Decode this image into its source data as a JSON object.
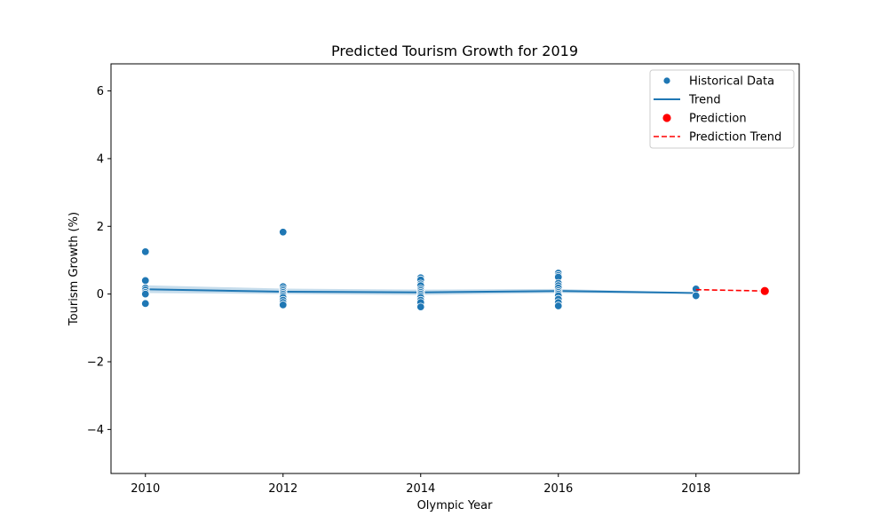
{
  "chart_data": {
    "type": "scatter",
    "title": "Predicted Tourism Growth for 2019",
    "xlabel": "Olympic Year",
    "ylabel": "Tourism Growth (%)",
    "xlim": [
      2009.5,
      2019.5
    ],
    "ylim": [
      -5.3,
      6.8
    ],
    "x_ticks": [
      2010,
      2012,
      2014,
      2016,
      2018
    ],
    "x_tick_labels": [
      "2010",
      "2012",
      "2014",
      "2016",
      "2018"
    ],
    "y_ticks": [
      -4,
      -2,
      0,
      2,
      4,
      6
    ],
    "y_tick_labels": [
      "−4",
      "−2",
      "0",
      "2",
      "4",
      "6"
    ],
    "grid": false,
    "legend_position": "top-right",
    "legend": [
      {
        "label": "Historical Data",
        "kind": "marker",
        "color": "#1f77b4"
      },
      {
        "label": "Trend",
        "kind": "line",
        "color": "#1f77b4"
      },
      {
        "label": "Prediction",
        "kind": "marker",
        "color": "#ff0000"
      },
      {
        "label": "Prediction Trend",
        "kind": "dashed-line",
        "color": "#ff0000"
      }
    ],
    "series": [
      {
        "type": "scatter",
        "color": "#1f77b4",
        "points": [
          [
            2010,
            1.25
          ],
          [
            2010,
            0.4
          ],
          [
            2010,
            0.18
          ],
          [
            2010,
            0.12
          ],
          [
            2010,
            0.05
          ],
          [
            2010,
            0.0
          ],
          [
            2010,
            -0.28
          ],
          [
            2012,
            1.83
          ],
          [
            2012,
            0.22
          ],
          [
            2012,
            0.15
          ],
          [
            2012,
            0.1
          ],
          [
            2012,
            0.05
          ],
          [
            2012,
            0.0
          ],
          [
            2012,
            -0.05
          ],
          [
            2012,
            -0.1
          ],
          [
            2012,
            -0.18
          ],
          [
            2012,
            -0.25
          ],
          [
            2012,
            -0.32
          ],
          [
            2014,
            0.48
          ],
          [
            2014,
            0.42
          ],
          [
            2014,
            0.3
          ],
          [
            2014,
            0.25
          ],
          [
            2014,
            0.15
          ],
          [
            2014,
            0.1
          ],
          [
            2014,
            0.05
          ],
          [
            2014,
            0.0
          ],
          [
            2014,
            -0.05
          ],
          [
            2014,
            -0.1
          ],
          [
            2014,
            -0.18
          ],
          [
            2014,
            -0.25
          ],
          [
            2014,
            -0.38
          ],
          [
            2016,
            0.62
          ],
          [
            2016,
            0.55
          ],
          [
            2016,
            0.5
          ],
          [
            2016,
            0.32
          ],
          [
            2016,
            0.25
          ],
          [
            2016,
            0.18
          ],
          [
            2016,
            0.1
          ],
          [
            2016,
            0.05
          ],
          [
            2016,
            0.0
          ],
          [
            2016,
            -0.05
          ],
          [
            2016,
            -0.15
          ],
          [
            2016,
            -0.25
          ],
          [
            2016,
            -0.35
          ],
          [
            2018,
            0.15
          ],
          [
            2018,
            -0.05
          ]
        ]
      },
      {
        "type": "line",
        "color": "#1f77b4",
        "x": [
          2010,
          2012,
          2014,
          2016,
          2018
        ],
        "y": [
          0.14,
          0.07,
          0.05,
          0.09,
          0.03
        ],
        "ci_lower": [
          0.03,
          0.0,
          -0.03,
          0.03,
          0.01
        ],
        "ci_upper": [
          0.26,
          0.16,
          0.13,
          0.15,
          0.05
        ]
      },
      {
        "type": "scatter",
        "color": "#ff0000",
        "points": [
          [
            2019,
            0.09
          ]
        ]
      },
      {
        "type": "dashed-line",
        "color": "#ff0000",
        "x": [
          2018,
          2019
        ],
        "y": [
          0.13,
          0.09
        ]
      }
    ]
  }
}
